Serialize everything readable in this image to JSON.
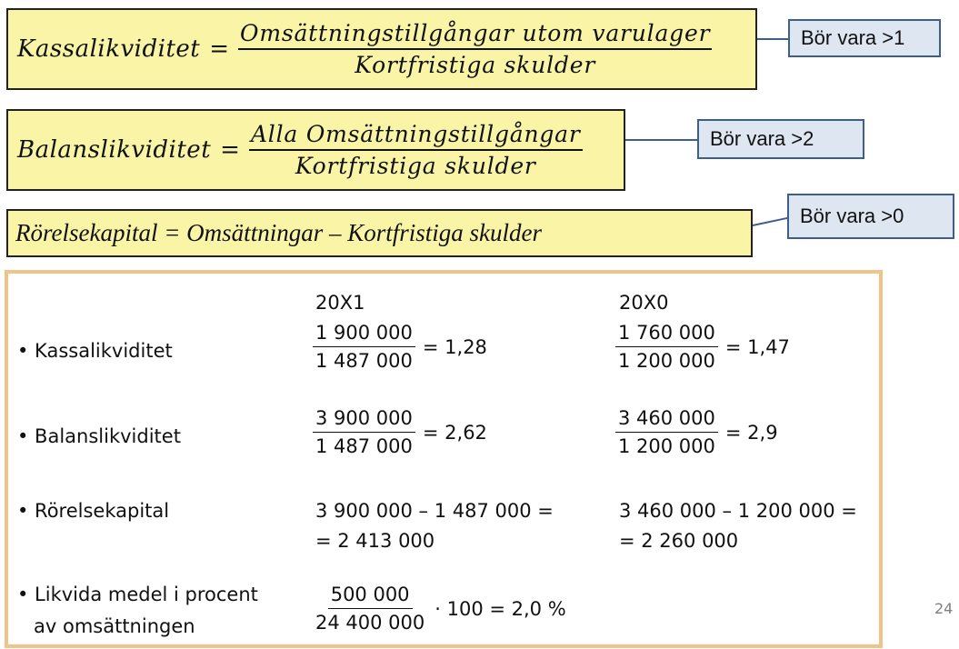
{
  "formulas": [
    {
      "label": "Kassalikviditet",
      "equals": "=",
      "numerator": "Omsättningstillgångar utom varulager",
      "denominator": "Kortfristiga skulder",
      "note": "Bör vara >1"
    },
    {
      "label": "Balanslikviditet",
      "equals": "=",
      "numerator": "Alla Omsättningstillgångar",
      "denominator": "Kortfristiga skulder",
      "note": "Bör vara >2"
    },
    {
      "expression": "Rörelsekapital = Omsättningar – Kortfristiga skulder",
      "note": "Bör vara >0"
    }
  ],
  "calc": {
    "year1": "20X1",
    "year0": "20X0",
    "rows": {
      "kassa": {
        "label": "• Kassalikviditet",
        "y1": {
          "num": "1 900 000",
          "den": "1 487 000",
          "result": "= 1,28"
        },
        "y0": {
          "num": "1 760 000",
          "den": "1 200 000",
          "result": "= 1,47"
        }
      },
      "balans": {
        "label": "• Balanslikviditet",
        "y1": {
          "num": "3 900 000",
          "den": "1 487 000",
          "result": "= 2,62"
        },
        "y0": {
          "num": "3 460 000",
          "den": "1 200 000",
          "result": "= 2,9"
        }
      },
      "rorelse": {
        "label": "• Rörelsekapital",
        "y1": {
          "line1": "3 900 000 – 1 487 000 =",
          "line2": "= 2 413 000"
        },
        "y0": {
          "line1": "3 460 000 – 1 200 000 =",
          "line2": "= 2 260 000"
        }
      },
      "likvida": {
        "label_line1": "• Likvida medel i procent",
        "label_line2": "av omsättningen",
        "y1": {
          "num": "500 000",
          "den": "24 400 000",
          "result": "· 100 = 2,0 %"
        }
      }
    }
  },
  "page_number": "24",
  "colors": {
    "formula_bg": "#faf5a6",
    "callout_bg": "#dde6f1",
    "callout_border": "#3d5f8a",
    "panel_border": "#f0c38a"
  }
}
